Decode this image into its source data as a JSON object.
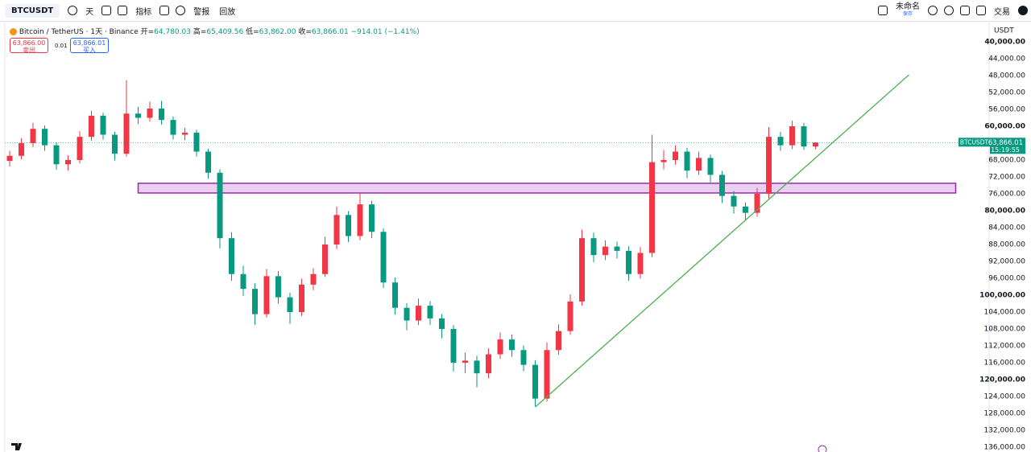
{
  "toolbar": {
    "symbol": "BTCUSDT",
    "interval": "天",
    "indicators": "指标",
    "alert": "警报",
    "replay": "回放",
    "layout_name": "未命名",
    "save": "保存",
    "trade": "交易"
  },
  "legend": {
    "title": "Bitcoin / TetherUS · 1天 · Binance",
    "ohlc": [
      {
        "label": "开=",
        "value": "64,780.03"
      },
      {
        "label": "高=",
        "value": "65,409.56"
      },
      {
        "label": "低=",
        "value": "63,862.00"
      },
      {
        "label": "收=",
        "value": "63,866.01"
      }
    ],
    "change": "−914.01 (−1.41%)"
  },
  "order": {
    "sell_price": "63,866.00",
    "sell": "卖出",
    "spread": "0.01",
    "buy_price": "63,866.01",
    "buy": "买入"
  },
  "chart_data": {
    "type": "candlestick",
    "y_axis_label": "USDT",
    "inverted": true,
    "ylim": [
      40000,
      136000
    ],
    "yticks": [
      {
        "value": 40000,
        "label": "40,000.00"
      },
      {
        "value": 44000,
        "label": "44,000.00"
      },
      {
        "value": 48000,
        "label": "48,000.00"
      },
      {
        "value": 52000,
        "label": "52,000.00"
      },
      {
        "value": 56000,
        "label": "56,000.00"
      },
      {
        "value": 60000,
        "label": "60,000.00"
      },
      {
        "value": 64000,
        "label": "64,000.00"
      },
      {
        "value": 68000,
        "label": "68,000.00"
      },
      {
        "value": 72000,
        "label": "72,000.00"
      },
      {
        "value": 76000,
        "label": "76,000.00"
      },
      {
        "value": 80000,
        "label": "80,000.00"
      },
      {
        "value": 84000,
        "label": "84,000.00"
      },
      {
        "value": 88000,
        "label": "88,000.00"
      },
      {
        "value": 92000,
        "label": "92,000.00"
      },
      {
        "value": 96000,
        "label": "96,000.00"
      },
      {
        "value": 100000,
        "label": "100,000.00"
      },
      {
        "value": 104000,
        "label": "104,000.00"
      },
      {
        "value": 108000,
        "label": "108,000.00"
      },
      {
        "value": 112000,
        "label": "112,000.00"
      },
      {
        "value": 116000,
        "label": "116,000.00"
      },
      {
        "value": 120000,
        "label": "120,000.00"
      },
      {
        "value": 124000,
        "label": "124,000.00"
      },
      {
        "value": 128000,
        "label": "128,000.00"
      },
      {
        "value": 132000,
        "label": "132,000.00"
      },
      {
        "value": 136000,
        "label": "136,000.00"
      }
    ],
    "up_color": "#089981",
    "down_color": "#f23645",
    "candles": [
      [
        68200,
        69500,
        65800,
        67000
      ],
      [
        67000,
        67800,
        62800,
        64000
      ],
      [
        64000,
        64900,
        59200,
        60600
      ],
      [
        60600,
        65800,
        59800,
        64500
      ],
      [
        64500,
        70300,
        63800,
        69000
      ],
      [
        69000,
        70500,
        66900,
        68000
      ],
      [
        68000,
        68800,
        61200,
        62500
      ],
      [
        62500,
        63400,
        56300,
        57500
      ],
      [
        57500,
        63200,
        56800,
        62000
      ],
      [
        62000,
        68100,
        61300,
        66500
      ],
      [
        66500,
        67200,
        49100,
        57000
      ],
      [
        57000,
        59500,
        55400,
        58000
      ],
      [
        58000,
        58900,
        54200,
        55800
      ],
      [
        55800,
        59600,
        54000,
        58500
      ],
      [
        58500,
        63100,
        57700,
        62000
      ],
      [
        62000,
        63300,
        60400,
        61500
      ],
      [
        61500,
        67200,
        60800,
        66000
      ],
      [
        66000,
        72400,
        65300,
        71000
      ],
      [
        71000,
        88900,
        70200,
        86500
      ],
      [
        86500,
        96600,
        85100,
        95000
      ],
      [
        95000,
        100200,
        93000,
        98500
      ],
      [
        98500,
        107000,
        97200,
        104500
      ],
      [
        104500,
        105300,
        93800,
        95500
      ],
      [
        95500,
        102000,
        94300,
        100500
      ],
      [
        100500,
        106800,
        99400,
        104000
      ],
      [
        104000,
        104900,
        96100,
        97500
      ],
      [
        97500,
        98800,
        93600,
        95000
      ],
      [
        95000,
        95700,
        86200,
        88000
      ],
      [
        88000,
        89100,
        79000,
        81000
      ],
      [
        81000,
        87400,
        80100,
        86000
      ],
      [
        86000,
        87000,
        75800,
        78500
      ],
      [
        78500,
        86500,
        77600,
        85000
      ],
      [
        85000,
        98300,
        84200,
        97000
      ],
      [
        97000,
        104600,
        95800,
        103000
      ],
      [
        103000,
        108300,
        101900,
        106000
      ],
      [
        106000,
        107100,
        100800,
        102500
      ],
      [
        102500,
        107000,
        101400,
        105500
      ],
      [
        105500,
        110200,
        104500,
        108000
      ],
      [
        108000,
        118100,
        107100,
        116000
      ],
      [
        116000,
        118500,
        113600,
        115500
      ],
      [
        115500,
        121800,
        114300,
        118500
      ],
      [
        118500,
        119700,
        112600,
        114000
      ],
      [
        114000,
        115100,
        108800,
        110500
      ],
      [
        110500,
        114600,
        109300,
        113000
      ],
      [
        113000,
        118000,
        111900,
        116500
      ],
      [
        116500,
        126300,
        115400,
        124500
      ],
      [
        124500,
        125200,
        111200,
        113000
      ],
      [
        113000,
        114100,
        106900,
        108500
      ],
      [
        108500,
        109400,
        99800,
        101500
      ],
      [
        101500,
        102500,
        84500,
        86500
      ],
      [
        86500,
        92200,
        85200,
        90500
      ],
      [
        90500,
        91700,
        87000,
        88500
      ],
      [
        88500,
        91300,
        87300,
        89500
      ],
      [
        89500,
        96600,
        88400,
        95000
      ],
      [
        95000,
        96100,
        88600,
        90000
      ],
      [
        90000,
        91000,
        62000,
        68500
      ],
      [
        68500,
        70200,
        65600,
        68000
      ],
      [
        68000,
        69100,
        64500,
        66000
      ],
      [
        66000,
        72300,
        65100,
        70500
      ],
      [
        70500,
        71500,
        66000,
        67500
      ],
      [
        67500,
        73300,
        66700,
        71500
      ],
      [
        71500,
        78200,
        70600,
        76500
      ],
      [
        76500,
        80700,
        75300,
        79000
      ],
      [
        79000,
        82300,
        78000,
        80500
      ],
      [
        80500,
        81400,
        74600,
        76000
      ],
      [
        76000,
        77100,
        60200,
        62500
      ],
      [
        62500,
        65800,
        61300,
        64500
      ],
      [
        64500,
        65400,
        58700,
        60000
      ],
      [
        60000,
        65600,
        59200,
        64800
      ],
      [
        64780.03,
        65409.56,
        63862.0,
        63866.01
      ]
    ],
    "zone": {
      "start_index": 11,
      "end_index": 81,
      "top": 73500,
      "bottom": 75800,
      "color": "#9c27b0"
    },
    "trendline": {
      "start": {
        "index": 45,
        "price": 126500
      },
      "end": {
        "index": 77,
        "price": 47800
      },
      "color": "#4caf50"
    },
    "last_price": {
      "value": 63866.01,
      "label": "63,866.01"
    },
    "symbol_tag": "BTCUSDT",
    "countdown": "15:19:55"
  }
}
